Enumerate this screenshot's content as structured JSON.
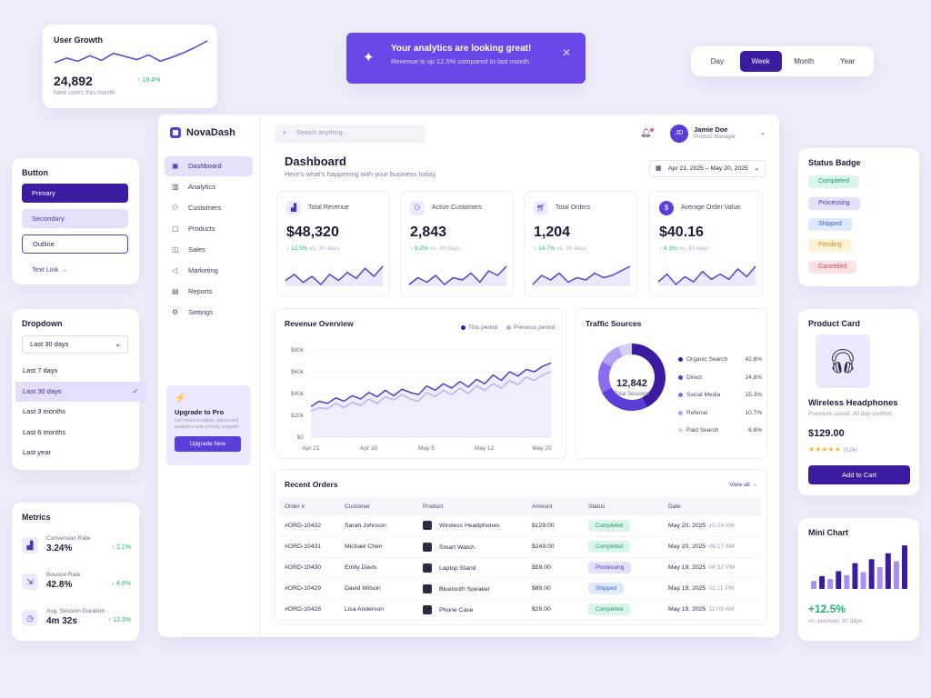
{
  "user_growth": {
    "title": "User Growth",
    "value": "24,892",
    "change": "↑ 18.4%",
    "subtitle": "New users this month",
    "series": [
      10,
      16,
      12,
      19,
      13,
      22,
      18,
      14,
      20,
      12,
      17,
      23,
      30,
      38
    ]
  },
  "banner": {
    "title": "Your analytics are looking great!",
    "subtitle": "Revenue is up 12.5% compared to last month.",
    "icon": "sparkle-icon",
    "close_icon": "close-icon"
  },
  "segment": {
    "options": [
      "Day",
      "Week",
      "Month",
      "Year"
    ],
    "selected": "Week"
  },
  "buttons": {
    "title": "Button",
    "primary": "Primary",
    "secondary": "Secondary",
    "outline": "Outline",
    "text_link": "Text Link"
  },
  "dropdown": {
    "title": "Dropdown",
    "selected": "Last 30 days",
    "options": [
      "Last 7 days",
      "Last 30 days",
      "Last 3 months",
      "Last 6 months",
      "Last year"
    ]
  },
  "metrics": {
    "title": "Metrics",
    "items": [
      {
        "label": "Conversion Rate",
        "value": "3.24%",
        "change": "↑ 2.1%",
        "icon": "chart-icon"
      },
      {
        "label": "Bounce Rate",
        "value": "42.8%",
        "change": "↓ 4.6%",
        "icon": "bounce-icon"
      },
      {
        "label": "Avg. Session Duration",
        "value": "4m 32s",
        "change": "↑ 12.3%",
        "icon": "clock-icon"
      }
    ]
  },
  "app": {
    "name": "NovaDash"
  },
  "nav": [
    {
      "label": "Dashboard",
      "icon": "dashboard-icon",
      "active": true
    },
    {
      "label": "Analytics",
      "icon": "analytics-icon"
    },
    {
      "label": "Customers",
      "icon": "customers-icon"
    },
    {
      "label": "Products",
      "icon": "products-icon"
    },
    {
      "label": "Sales",
      "icon": "sales-icon"
    },
    {
      "label": "Marketing",
      "icon": "marketing-icon"
    },
    {
      "label": "Reports",
      "icon": "reports-icon"
    },
    {
      "label": "Settings",
      "icon": "settings-icon"
    }
  ],
  "upgrade": {
    "title": "Upgrade to Pro",
    "desc": "Get more insights, advanced analytics and priority support.",
    "button": "Upgrade Now"
  },
  "header": {
    "search_placeholder": "Search anything...",
    "user_initials": "JD",
    "user_name": "Jamie Doe",
    "user_role": "Product Manager"
  },
  "page": {
    "title": "Dashboard",
    "subtitle": "Here's what's happening with your business today.",
    "date_range": "Apr 21, 2025 – May 20, 2025"
  },
  "kpis": [
    {
      "label": "Total Revenue",
      "value": "$48,320",
      "change": "↑ 12.5%",
      "period": "vs. 30 days",
      "icon": "revenue-icon"
    },
    {
      "label": "Active Customers",
      "value": "2,843",
      "change": "↑ 8.2%",
      "period": "vs. 30 days",
      "icon": "customers-icon"
    },
    {
      "label": "Total Orders",
      "value": "1,204",
      "change": "↑ 14.7%",
      "period": "vs. 30 days",
      "icon": "cart-icon"
    },
    {
      "label": "Average Order Value",
      "value": "$40.16",
      "change": "↑ 6.3%",
      "period": "vs. 30 days",
      "icon": "dollar-icon"
    }
  ],
  "kpi_sparks": [
    [
      10,
      13,
      9,
      12,
      8,
      13,
      10,
      14,
      11,
      16,
      12,
      17
    ],
    [
      9,
      12,
      10,
      13,
      9,
      12,
      11,
      14,
      10,
      15,
      13,
      17
    ],
    [
      8,
      12,
      10,
      13,
      9,
      11,
      10,
      13,
      11,
      12,
      14,
      16
    ],
    [
      11,
      14,
      10,
      13,
      11,
      15,
      12,
      14,
      12,
      16,
      13,
      17
    ]
  ],
  "revenue_overview": {
    "title": "Revenue Overview",
    "legend_this": "This period",
    "legend_prev": "Previous period"
  },
  "chart_data": {
    "type": "line",
    "title": "Revenue Overview",
    "categories": [
      "Apr 21",
      "Apr 28",
      "May 5",
      "May 12",
      "May 20"
    ],
    "yticks": [
      "$0",
      "$20k",
      "$40k",
      "$60k",
      "$80k"
    ],
    "ylim": [
      0,
      80000
    ],
    "x": [
      0,
      1,
      2,
      3,
      4,
      5,
      6,
      7,
      8,
      9,
      10,
      11,
      12,
      13,
      14,
      15,
      16,
      17,
      18,
      19,
      20,
      21,
      22,
      23,
      24,
      25,
      26,
      27,
      28,
      29
    ],
    "series": [
      {
        "name": "This period",
        "color": "#4f2fd0",
        "values": [
          28000,
          33000,
          31000,
          36000,
          33000,
          38000,
          35000,
          41000,
          37000,
          43000,
          38000,
          44000,
          41000,
          39000,
          47000,
          43000,
          49000,
          45000,
          51000,
          46000,
          53000,
          49000,
          57000,
          52000,
          60000,
          56000,
          62000,
          60000,
          65000,
          68000
        ]
      },
      {
        "name": "Previous period",
        "color": "#b9aff0",
        "values": [
          24000,
          27000,
          26000,
          31000,
          27000,
          32000,
          29000,
          35000,
          31000,
          37000,
          34000,
          39000,
          35000,
          33000,
          41000,
          37000,
          43000,
          39000,
          45000,
          40000,
          47000,
          43000,
          49000,
          45000,
          52000,
          48000,
          55000,
          52000,
          57000,
          60000
        ]
      }
    ],
    "grid": true,
    "legend": "top-right"
  },
  "traffic": {
    "title": "Traffic Sources",
    "total": "12,842",
    "total_label": "Total Sessions",
    "sources": [
      {
        "label": "Organic Search",
        "value": "42.6%",
        "pct": 42.6,
        "color": "#3b1ba0"
      },
      {
        "label": "Direct",
        "value": "24.8%",
        "pct": 24.8,
        "color": "#5b3dd8"
      },
      {
        "label": "Social Media",
        "value": "15.3%",
        "pct": 15.3,
        "color": "#8a6cf0"
      },
      {
        "label": "Referral",
        "value": "10.7%",
        "pct": 10.7,
        "color": "#b2a1f5"
      },
      {
        "label": "Paid Search",
        "value": "6.6%",
        "pct": 6.6,
        "color": "#d8cff9"
      }
    ]
  },
  "orders": {
    "title": "Recent Orders",
    "view_all": "View all →",
    "columns": [
      "Order #",
      "Customer",
      "Product",
      "Amount",
      "Status",
      "Date"
    ],
    "rows": [
      {
        "id": "#ORD-10432",
        "customer": "Sarah Johnson",
        "product": "Wireless Headphones",
        "amount": "$129.00",
        "status": "Completed",
        "date": "May 20, 2025",
        "time": "10:24 AM"
      },
      {
        "id": "#ORD-10431",
        "customer": "Michael Chen",
        "product": "Smart Watch",
        "amount": "$249.00",
        "status": "Completed",
        "date": "May 20, 2025",
        "time": "09:17 AM"
      },
      {
        "id": "#ORD-10430",
        "customer": "Emily Davis",
        "product": "Laptop Stand",
        "amount": "$59.00",
        "status": "Processing",
        "date": "May 19, 2025",
        "time": "04:32 PM"
      },
      {
        "id": "#ORD-10429",
        "customer": "David Wilson",
        "product": "Bluetooth Speaker",
        "amount": "$89.00",
        "status": "Shipped",
        "date": "May 19, 2025",
        "time": "02:11 PM"
      },
      {
        "id": "#ORD-10428",
        "customer": "Lisa Anderson",
        "product": "Phone Case",
        "amount": "$29.00",
        "status": "Completed",
        "date": "May 19, 2025",
        "time": "11:03 AM"
      }
    ]
  },
  "status_badges": {
    "title": "Status Badge",
    "items": [
      "Completed",
      "Processing",
      "Shipped",
      "Pending",
      "Cancelled"
    ]
  },
  "product_card": {
    "title": "Product Card",
    "name": "Wireless Headphones",
    "desc": "Premium sound. All day comfort.",
    "price": "$129.00",
    "stars": "★★★★★",
    "reviews": "(524)",
    "button": "Add to Cart",
    "icon": "headphones-icon"
  },
  "mini_chart": {
    "title": "Mini Chart",
    "value": "+12.5%",
    "subtitle": "vs. previous 30 days",
    "bars": [
      8,
      13,
      10,
      18,
      14,
      26,
      17,
      30,
      22,
      36,
      28,
      44
    ]
  }
}
